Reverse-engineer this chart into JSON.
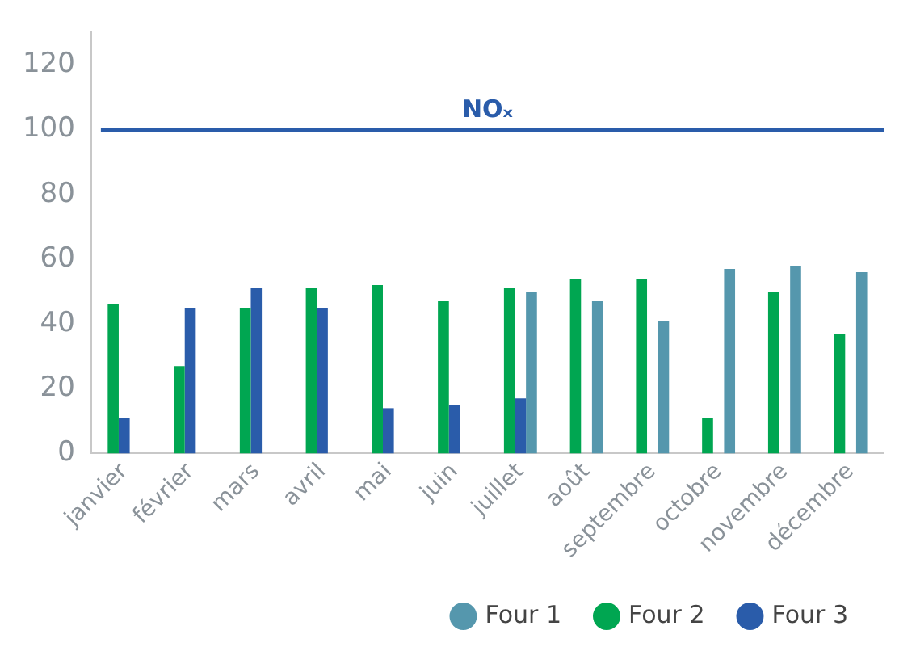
{
  "chart_data": {
    "type": "bar",
    "categories": [
      "janvier",
      "février",
      "mars",
      "avril",
      "mai",
      "juin",
      "juillet",
      "août",
      "septembre",
      "octobre",
      "novembre",
      "décembre"
    ],
    "series": [
      {
        "name": "Four 1",
        "color": "#5597ad",
        "values": [
          null,
          null,
          null,
          null,
          null,
          null,
          50,
          47,
          41,
          57,
          58,
          56
        ]
      },
      {
        "name": "Four 2",
        "color": "#00a651",
        "values": [
          46,
          27,
          45,
          51,
          52,
          47,
          51,
          54,
          54,
          11,
          50,
          37
        ]
      },
      {
        "name": "Four 3",
        "color": "#2a5caa",
        "values": [
          11,
          45,
          51,
          45,
          14,
          15,
          17,
          null,
          null,
          null,
          null,
          null
        ]
      }
    ],
    "ylim": [
      0,
      130
    ],
    "yticks": [
      0,
      20,
      40,
      60,
      80,
      100,
      120
    ],
    "grid": false,
    "legend": "bottom right",
    "ref_lines": [
      {
        "axis": "y",
        "value": 100,
        "label": "NOₓ",
        "color": "#2a5caa"
      }
    ]
  }
}
